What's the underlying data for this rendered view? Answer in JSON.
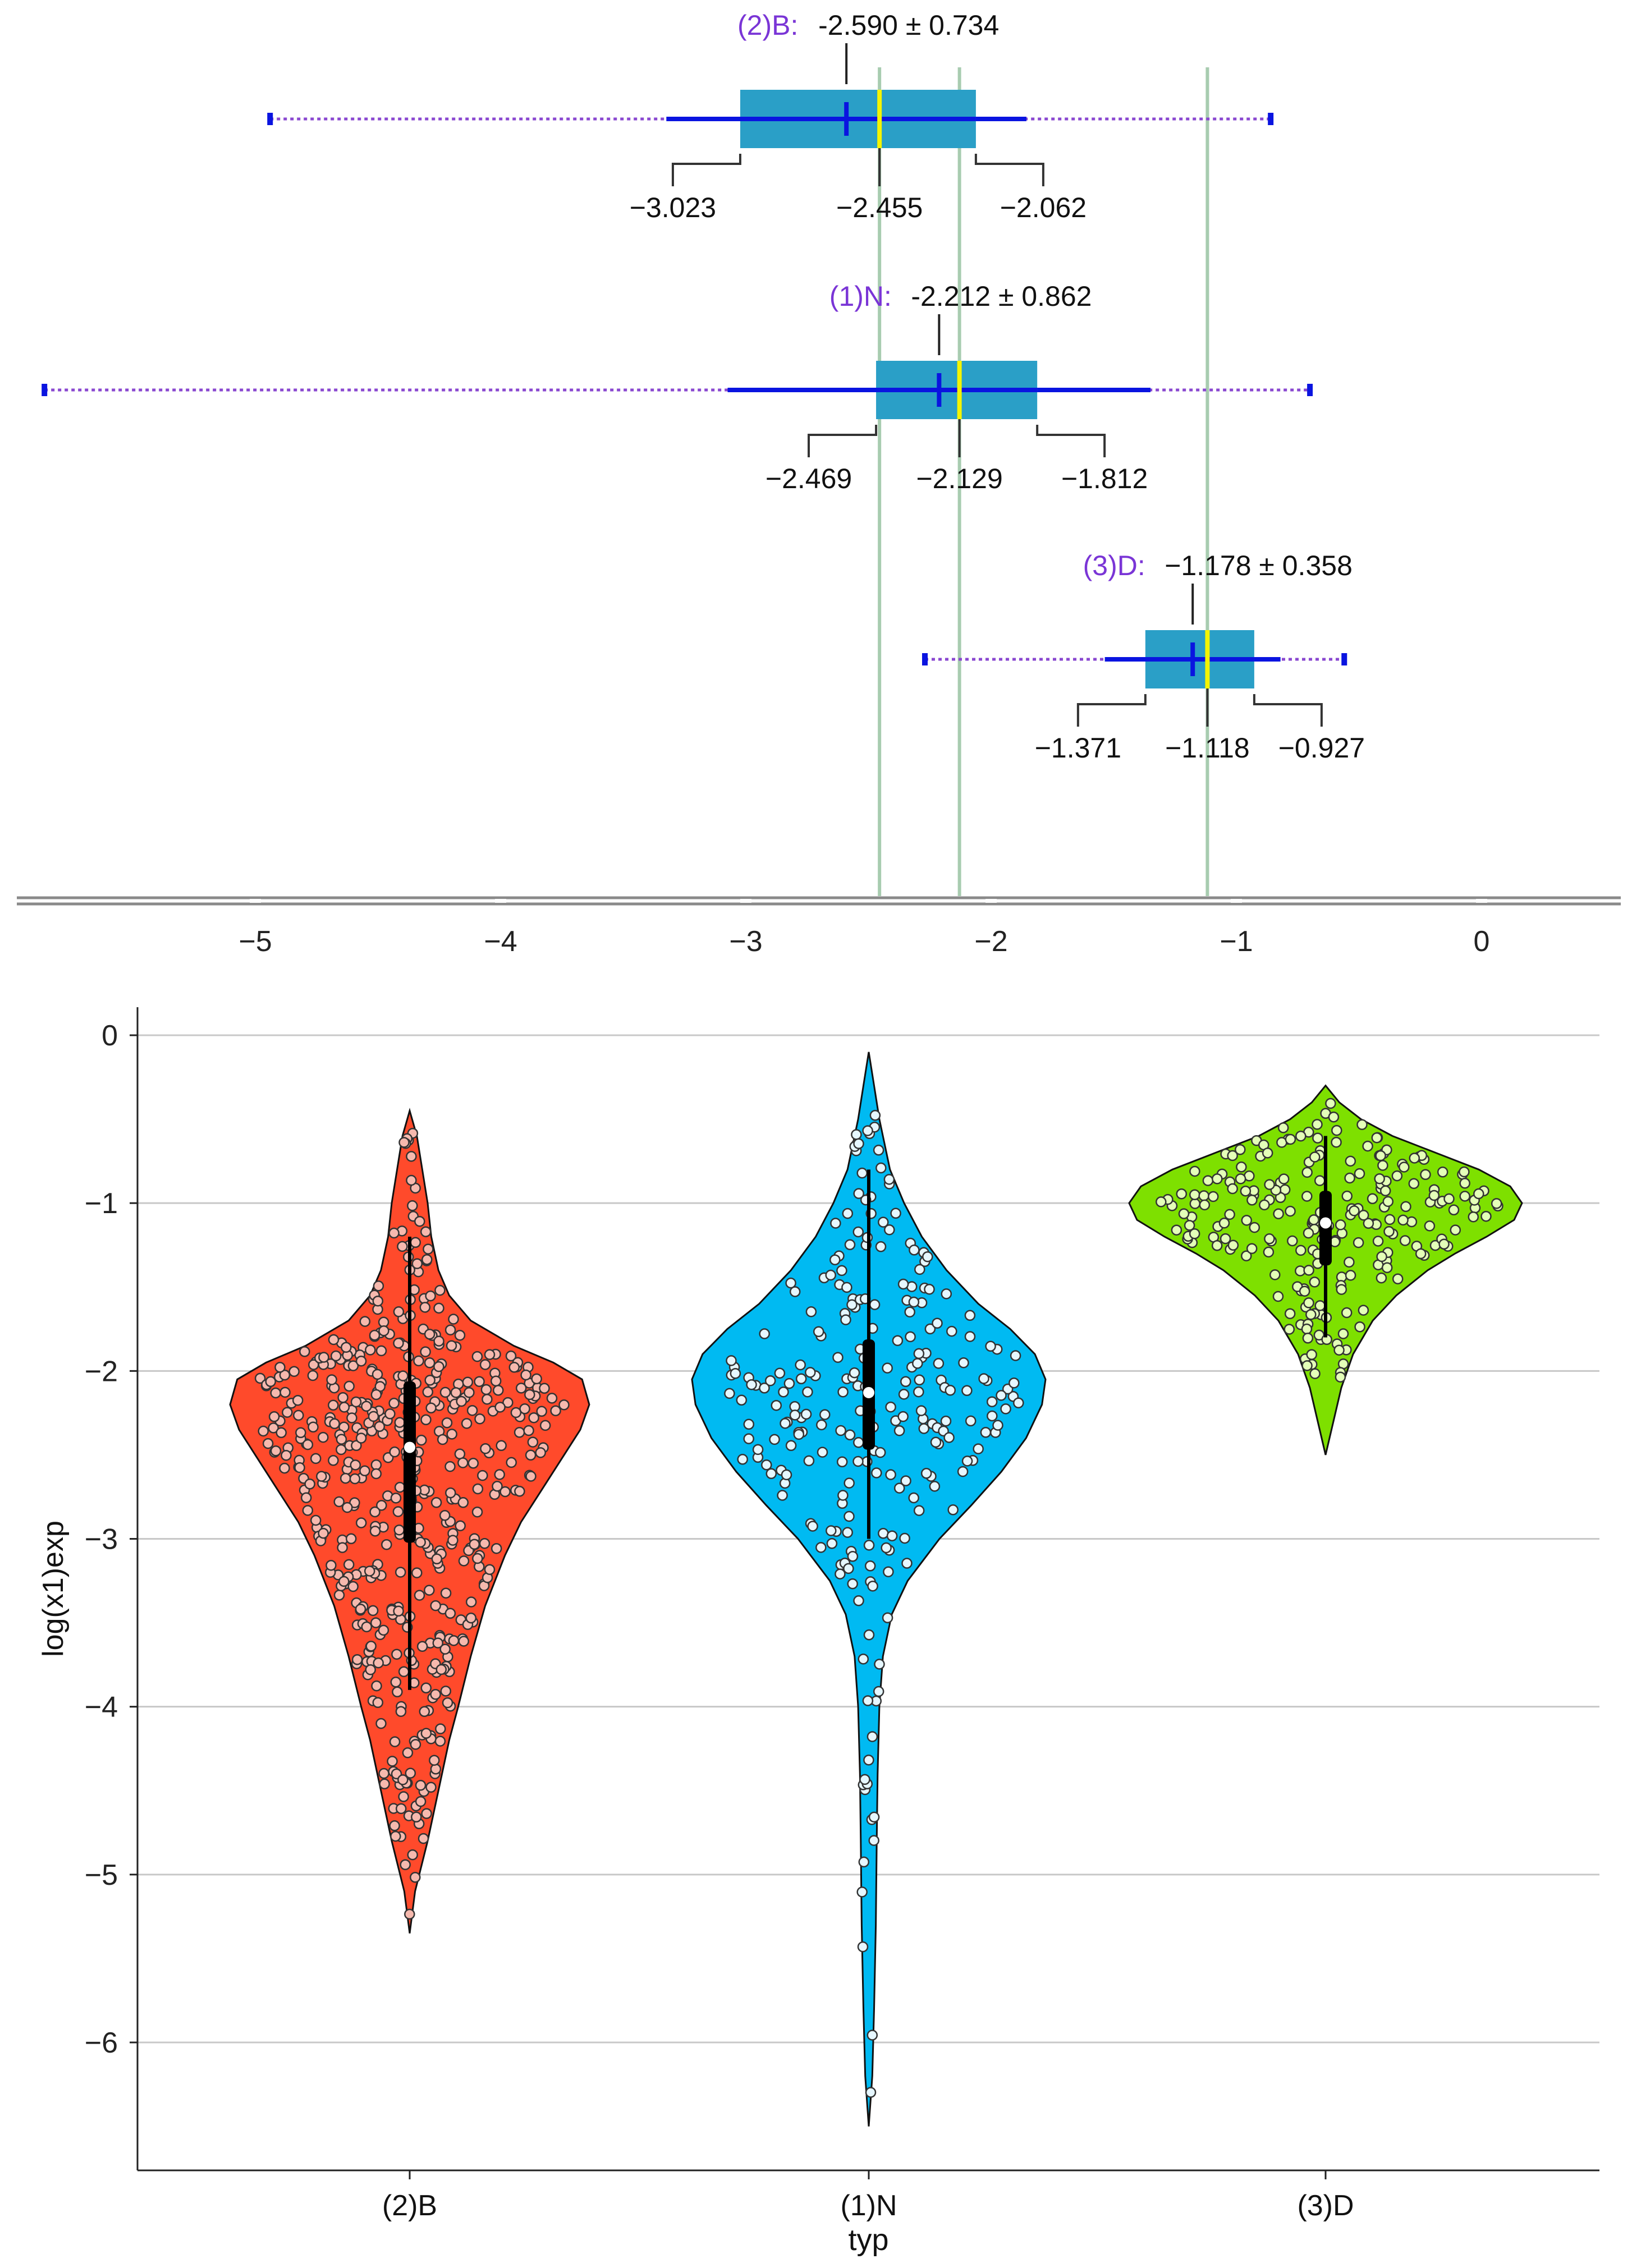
{
  "colors": {
    "box_fill": "#2a9fc7",
    "whisker_line": "#0a14e0",
    "dotted_range": "#8a48d0",
    "median_marker": "#f4f400",
    "label_purple": "#7a35d6",
    "ref_line": "#a8ccb0",
    "axis_gray": "#8a8a8a",
    "violin_B": "#ff4a2b",
    "point_B": "#f6b9ae",
    "violin_N": "#00baf2",
    "point_N": "#e6f7ff",
    "violin_D": "#7ee000",
    "point_D": "#e4ffb8"
  },
  "chart_data": [
    {
      "type": "box",
      "orientation": "horizontal",
      "title": "",
      "xlim": [
        -5.8,
        0.6
      ],
      "xticks": [
        -5,
        -4,
        -3,
        -2,
        -1,
        0
      ],
      "xtick_labels": [
        "−5",
        "−4",
        "−3",
        "−2",
        "−1",
        "0"
      ],
      "groups": [
        {
          "key": "B",
          "label": "(2)B:",
          "mean_text": "-2.590 ± 0.734",
          "mean": -2.59,
          "sd": 0.734,
          "q1": -3.023,
          "median": -2.455,
          "q3": -2.062,
          "q1_label": "−3.023",
          "median_label": "−2.455",
          "q3_label": "−2.062",
          "min": -4.94,
          "max": -0.86
        },
        {
          "key": "N",
          "label": "(1)N:",
          "mean_text": "-2.212 ± 0.862",
          "mean": -2.212,
          "sd": 0.862,
          "q1": -2.469,
          "median": -2.129,
          "q3": -1.812,
          "q1_label": "−2.469",
          "median_label": "−2.129",
          "q3_label": "−1.812",
          "min": -5.86,
          "max": -0.7
        },
        {
          "key": "D",
          "label": "(3)D:",
          "mean_text": "−1.178  ± 0.358",
          "mean": -1.178,
          "sd": 0.358,
          "q1": -1.371,
          "median": -1.118,
          "q3": -0.927,
          "q1_label": "−1.371",
          "median_label": "−1.118",
          "q3_label": "−0.927",
          "min": -2.27,
          "max": -0.56
        }
      ],
      "reference_lines": [
        -2.455,
        -2.129,
        -1.118
      ]
    },
    {
      "type": "violin",
      "xlabel": "typ",
      "ylabel": "log(x1)exp",
      "ylim": [
        -6.7,
        0.1
      ],
      "yticks": [
        0,
        -1,
        -2,
        -3,
        -4,
        -5,
        -6
      ],
      "ytick_labels": [
        "0",
        "−1",
        "−2",
        "−3",
        "−4",
        "−5",
        "−6"
      ],
      "grid": true,
      "categories": [
        "(2)B",
        "(1)N",
        "(3)D"
      ],
      "series": [
        {
          "name": "(2)B",
          "min": -5.35,
          "max": -0.45,
          "q1": -3.023,
          "median": -2.455,
          "q3": -2.062,
          "mean": -2.59,
          "whisker_low": -3.9,
          "whisker_high": -1.2,
          "n_points": 520,
          "density": [
            [
              -5.35,
              0.0
            ],
            [
              -5.1,
              0.03
            ],
            [
              -4.8,
              0.1
            ],
            [
              -4.5,
              0.16
            ],
            [
              -4.2,
              0.22
            ],
            [
              -4.0,
              0.27
            ],
            [
              -3.7,
              0.34
            ],
            [
              -3.4,
              0.42
            ],
            [
              -3.1,
              0.53
            ],
            [
              -2.9,
              0.62
            ],
            [
              -2.7,
              0.74
            ],
            [
              -2.5,
              0.86
            ],
            [
              -2.35,
              0.95
            ],
            [
              -2.2,
              1.0
            ],
            [
              -2.05,
              0.96
            ],
            [
              -1.95,
              0.8
            ],
            [
              -1.85,
              0.58
            ],
            [
              -1.7,
              0.34
            ],
            [
              -1.55,
              0.22
            ],
            [
              -1.4,
              0.16
            ],
            [
              -1.2,
              0.12
            ],
            [
              -1.0,
              0.1
            ],
            [
              -0.8,
              0.07
            ],
            [
              -0.6,
              0.04
            ],
            [
              -0.45,
              0.0
            ]
          ]
        },
        {
          "name": "(1)N",
          "min": -6.5,
          "max": -0.1,
          "q1": -2.469,
          "median": -2.129,
          "q3": -1.812,
          "mean": -2.212,
          "whisker_low": -3.0,
          "whisker_high": -0.8,
          "n_points": 250,
          "density": [
            [
              -6.5,
              0.0
            ],
            [
              -6.2,
              0.02
            ],
            [
              -5.8,
              0.03
            ],
            [
              -5.3,
              0.04
            ],
            [
              -4.8,
              0.045
            ],
            [
              -4.4,
              0.05
            ],
            [
              -4.0,
              0.06
            ],
            [
              -3.7,
              0.08
            ],
            [
              -3.45,
              0.13
            ],
            [
              -3.25,
              0.22
            ],
            [
              -3.0,
              0.4
            ],
            [
              -2.8,
              0.58
            ],
            [
              -2.6,
              0.75
            ],
            [
              -2.4,
              0.89
            ],
            [
              -2.2,
              0.98
            ],
            [
              -2.05,
              1.0
            ],
            [
              -1.9,
              0.94
            ],
            [
              -1.75,
              0.8
            ],
            [
              -1.6,
              0.62
            ],
            [
              -1.4,
              0.44
            ],
            [
              -1.2,
              0.3
            ],
            [
              -1.0,
              0.2
            ],
            [
              -0.8,
              0.12
            ],
            [
              -0.5,
              0.06
            ],
            [
              -0.3,
              0.03
            ],
            [
              -0.1,
              0.0
            ]
          ]
        },
        {
          "name": "(3)D",
          "min": -2.5,
          "max": -0.3,
          "q1": -1.371,
          "median": -1.118,
          "q3": -0.927,
          "mean": -1.178,
          "whisker_low": -1.8,
          "whisker_high": -0.6,
          "n_points": 230,
          "density": [
            [
              -2.5,
              0.0
            ],
            [
              -2.3,
              0.04
            ],
            [
              -2.1,
              0.08
            ],
            [
              -1.9,
              0.14
            ],
            [
              -1.7,
              0.24
            ],
            [
              -1.55,
              0.36
            ],
            [
              -1.4,
              0.52
            ],
            [
              -1.3,
              0.66
            ],
            [
              -1.2,
              0.82
            ],
            [
              -1.1,
              0.96
            ],
            [
              -1.0,
              1.0
            ],
            [
              -0.9,
              0.94
            ],
            [
              -0.8,
              0.78
            ],
            [
              -0.7,
              0.56
            ],
            [
              -0.6,
              0.34
            ],
            [
              -0.5,
              0.18
            ],
            [
              -0.4,
              0.07
            ],
            [
              -0.3,
              0.0
            ]
          ]
        }
      ]
    }
  ]
}
